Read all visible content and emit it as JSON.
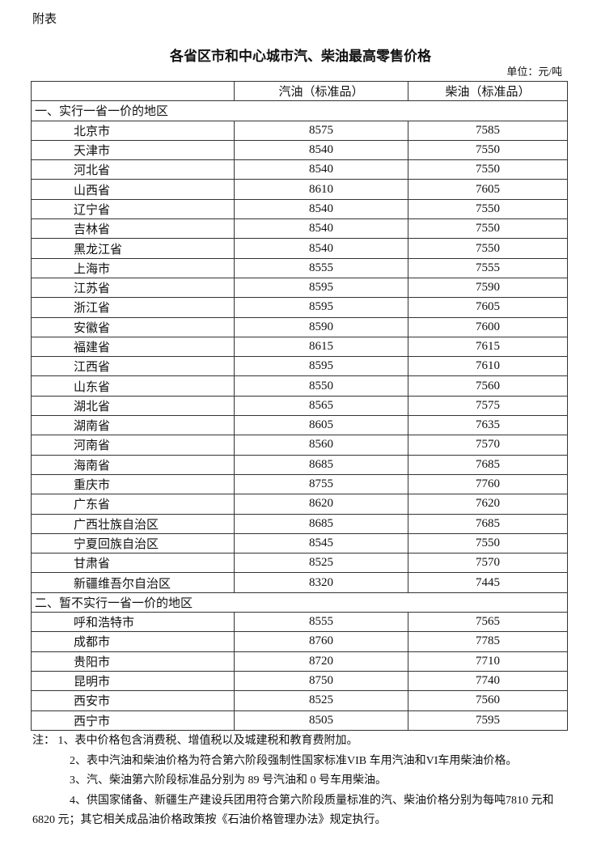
{
  "appendix_label": "附表",
  "title": "各省区市和中心城市汽、柴油最高零售价格",
  "unit": "单位：元/吨",
  "table": {
    "headers": [
      "",
      "汽油（标准品）",
      "柴油（标准品）"
    ],
    "sections": [
      {
        "label": "一、实行一省一价的地区",
        "rows": [
          [
            "北京市",
            "8575",
            "7585"
          ],
          [
            "天津市",
            "8540",
            "7550"
          ],
          [
            "河北省",
            "8540",
            "7550"
          ],
          [
            "山西省",
            "8610",
            "7605"
          ],
          [
            "辽宁省",
            "8540",
            "7550"
          ],
          [
            "吉林省",
            "8540",
            "7550"
          ],
          [
            "黑龙江省",
            "8540",
            "7550"
          ],
          [
            "上海市",
            "8555",
            "7555"
          ],
          [
            "江苏省",
            "8595",
            "7590"
          ],
          [
            "浙江省",
            "8595",
            "7605"
          ],
          [
            "安徽省",
            "8590",
            "7600"
          ],
          [
            "福建省",
            "8615",
            "7615"
          ],
          [
            "江西省",
            "8595",
            "7610"
          ],
          [
            "山东省",
            "8550",
            "7560"
          ],
          [
            "湖北省",
            "8565",
            "7575"
          ],
          [
            "湖南省",
            "8605",
            "7635"
          ],
          [
            "河南省",
            "8560",
            "7570"
          ],
          [
            "海南省",
            "8685",
            "7685"
          ],
          [
            "重庆市",
            "8755",
            "7760"
          ],
          [
            "广东省",
            "8620",
            "7620"
          ],
          [
            "广西壮族自治区",
            "8685",
            "7685"
          ],
          [
            "宁夏回族自治区",
            "8545",
            "7550"
          ],
          [
            "甘肃省",
            "8525",
            "7570"
          ],
          [
            "新疆维吾尔自治区",
            "8320",
            "7445"
          ]
        ]
      },
      {
        "label": "二、暂不实行一省一价的地区",
        "rows": [
          [
            "呼和浩特市",
            "8555",
            "7565"
          ],
          [
            "成都市",
            "8760",
            "7785"
          ],
          [
            "贵阳市",
            "8720",
            "7710"
          ],
          [
            "昆明市",
            "8750",
            "7740"
          ],
          [
            "西安市",
            "8525",
            "7560"
          ],
          [
            "西宁市",
            "8505",
            "7595"
          ]
        ]
      }
    ]
  },
  "notes": [
    "注：  1、表中价格包含消费税、增值税以及城建税和教育费附加。",
    "2、表中汽油和柴油价格为符合第六阶段强制性国家标准VIB 车用汽油和VI车用柴油价格。",
    "3、汽、柴油第六阶段标准品分别为 89 号汽油和 0 号车用柴油。",
    "4、供国家储备、新疆生产建设兵团用符合第六阶段质量标准的汽、柴油价格分别为每吨7810 元和 6820 元；其它相关成品油价格政策按《石油价格管理办法》规定执行。"
  ]
}
